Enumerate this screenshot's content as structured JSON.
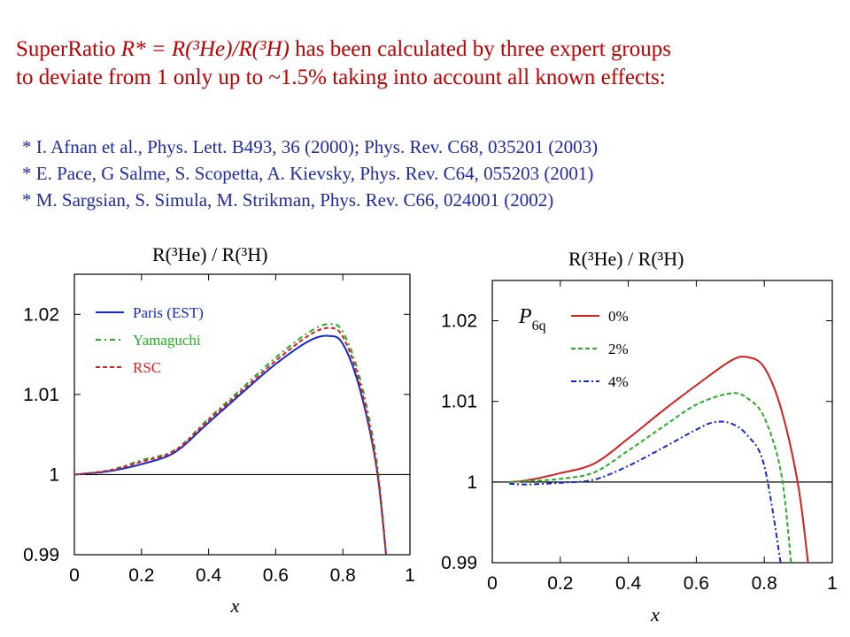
{
  "header": {
    "line1_pre": "SuperRatio ",
    "line1_ital": "R* = R(³He)/R(³H)",
    "line1_post": " has been calculated by three expert groups",
    "line2": "to deviate from 1 only up to ~1.5% taking into account all known effects:"
  },
  "references": [
    "* I. Afnan et al., Phys. Lett. B493, 36 (2000); Phys. Rev. C68, 035201 (2003)",
    "* E. Pace, G Salme, S. Scopetta, A. Kievsky, Phys. Rev. C64, 055203 (2001)",
    "* M. Sargsian, S. Simula, M. Strikman, Phys. Rev. C66, 024001 (2002)"
  ],
  "colors": {
    "header": "#c00000",
    "refs": "#1f2aa8",
    "blue": "#1428d0",
    "green": "#22b022",
    "red": "#d42020"
  },
  "chart_data": [
    {
      "type": "line",
      "title": "R(³He) / R(³H)",
      "xlabel": "x",
      "ylabel": "",
      "xlim": [
        0,
        1
      ],
      "ylim": [
        0.99,
        1.025
      ],
      "xticks": [
        "0",
        "0.2",
        "0.4",
        "0.6",
        "0.8",
        "1"
      ],
      "yticks": [
        "0.99",
        "1",
        "1.01",
        "1.02"
      ],
      "reference_line": 1.0,
      "legend_position": "top-left",
      "series": [
        {
          "name": "Paris (EST)",
          "color": "#1428d0",
          "dash": "solid",
          "x": [
            0,
            0.1,
            0.2,
            0.3,
            0.4,
            0.5,
            0.6,
            0.7,
            0.76,
            0.8,
            0.85,
            0.9,
            0.93
          ],
          "y": [
            1.0,
            1.0004,
            1.0013,
            1.0028,
            1.0065,
            1.0102,
            1.0138,
            1.0167,
            1.0173,
            1.0163,
            1.0108,
            1.001,
            0.9895
          ]
        },
        {
          "name": "Yamaguchi",
          "color": "#22b022",
          "dash": "6 4 2 4",
          "x": [
            0,
            0.1,
            0.2,
            0.3,
            0.4,
            0.5,
            0.6,
            0.7,
            0.76,
            0.8,
            0.85,
            0.9,
            0.93
          ],
          "y": [
            1.0,
            1.0005,
            1.0018,
            1.0031,
            1.007,
            1.0108,
            1.0146,
            1.0178,
            1.0188,
            1.0178,
            1.0122,
            1.002,
            0.9895
          ]
        },
        {
          "name": "RSC",
          "color": "#d42020",
          "dash": "5 3",
          "x": [
            0,
            0.1,
            0.2,
            0.3,
            0.4,
            0.5,
            0.6,
            0.7,
            0.76,
            0.8,
            0.85,
            0.9,
            0.93
          ],
          "y": [
            1.0,
            1.0005,
            1.0016,
            1.003,
            1.0068,
            1.0105,
            1.0142,
            1.0174,
            1.0183,
            1.0172,
            1.0115,
            1.0012,
            0.9895
          ]
        }
      ]
    },
    {
      "type": "line",
      "title": "R(³He) / R(³H)",
      "xlabel": "x",
      "ylabel": "",
      "xlim": [
        0,
        1
      ],
      "ylim": [
        0.99,
        1.025
      ],
      "xticks": [
        "0",
        "0.2",
        "0.4",
        "0.6",
        "0.8",
        "1"
      ],
      "yticks": [
        "0.99",
        "1",
        "1.01",
        "1.02"
      ],
      "reference_line": 1.0,
      "legend_title_main": "P",
      "legend_title_sub": "6q",
      "legend_position": "top-left",
      "series": [
        {
          "name": "0%",
          "color": "#d42020",
          "dash": "solid",
          "x": [
            0.05,
            0.1,
            0.2,
            0.3,
            0.4,
            0.5,
            0.6,
            0.7,
            0.75,
            0.8,
            0.85,
            0.9,
            0.93
          ],
          "y": [
            1.0,
            1.0002,
            1.0011,
            1.0023,
            1.0054,
            1.0088,
            1.012,
            1.015,
            1.0155,
            1.0142,
            1.009,
            0.9995,
            0.9895
          ]
        },
        {
          "name": "2%",
          "color": "#22b022",
          "dash": "5 3",
          "x": [
            0.05,
            0.1,
            0.2,
            0.3,
            0.4,
            0.5,
            0.6,
            0.7,
            0.75,
            0.8,
            0.85,
            0.88
          ],
          "y": [
            1.0,
            1.0001,
            1.0004,
            1.0012,
            1.0039,
            1.0068,
            1.0096,
            1.011,
            1.0104,
            1.008,
            1.001,
            0.9895
          ]
        },
        {
          "name": "4%",
          "color": "#1428d0",
          "dash": "6 3 2 3",
          "x": [
            0.05,
            0.1,
            0.2,
            0.3,
            0.4,
            0.5,
            0.6,
            0.65,
            0.7,
            0.75,
            0.8,
            0.85
          ],
          "y": [
            0.9998,
            0.9997,
            0.9999,
            1.0003,
            1.002,
            1.0042,
            1.0065,
            1.0074,
            1.0073,
            1.0058,
            1.002,
            0.9895
          ]
        }
      ]
    }
  ]
}
